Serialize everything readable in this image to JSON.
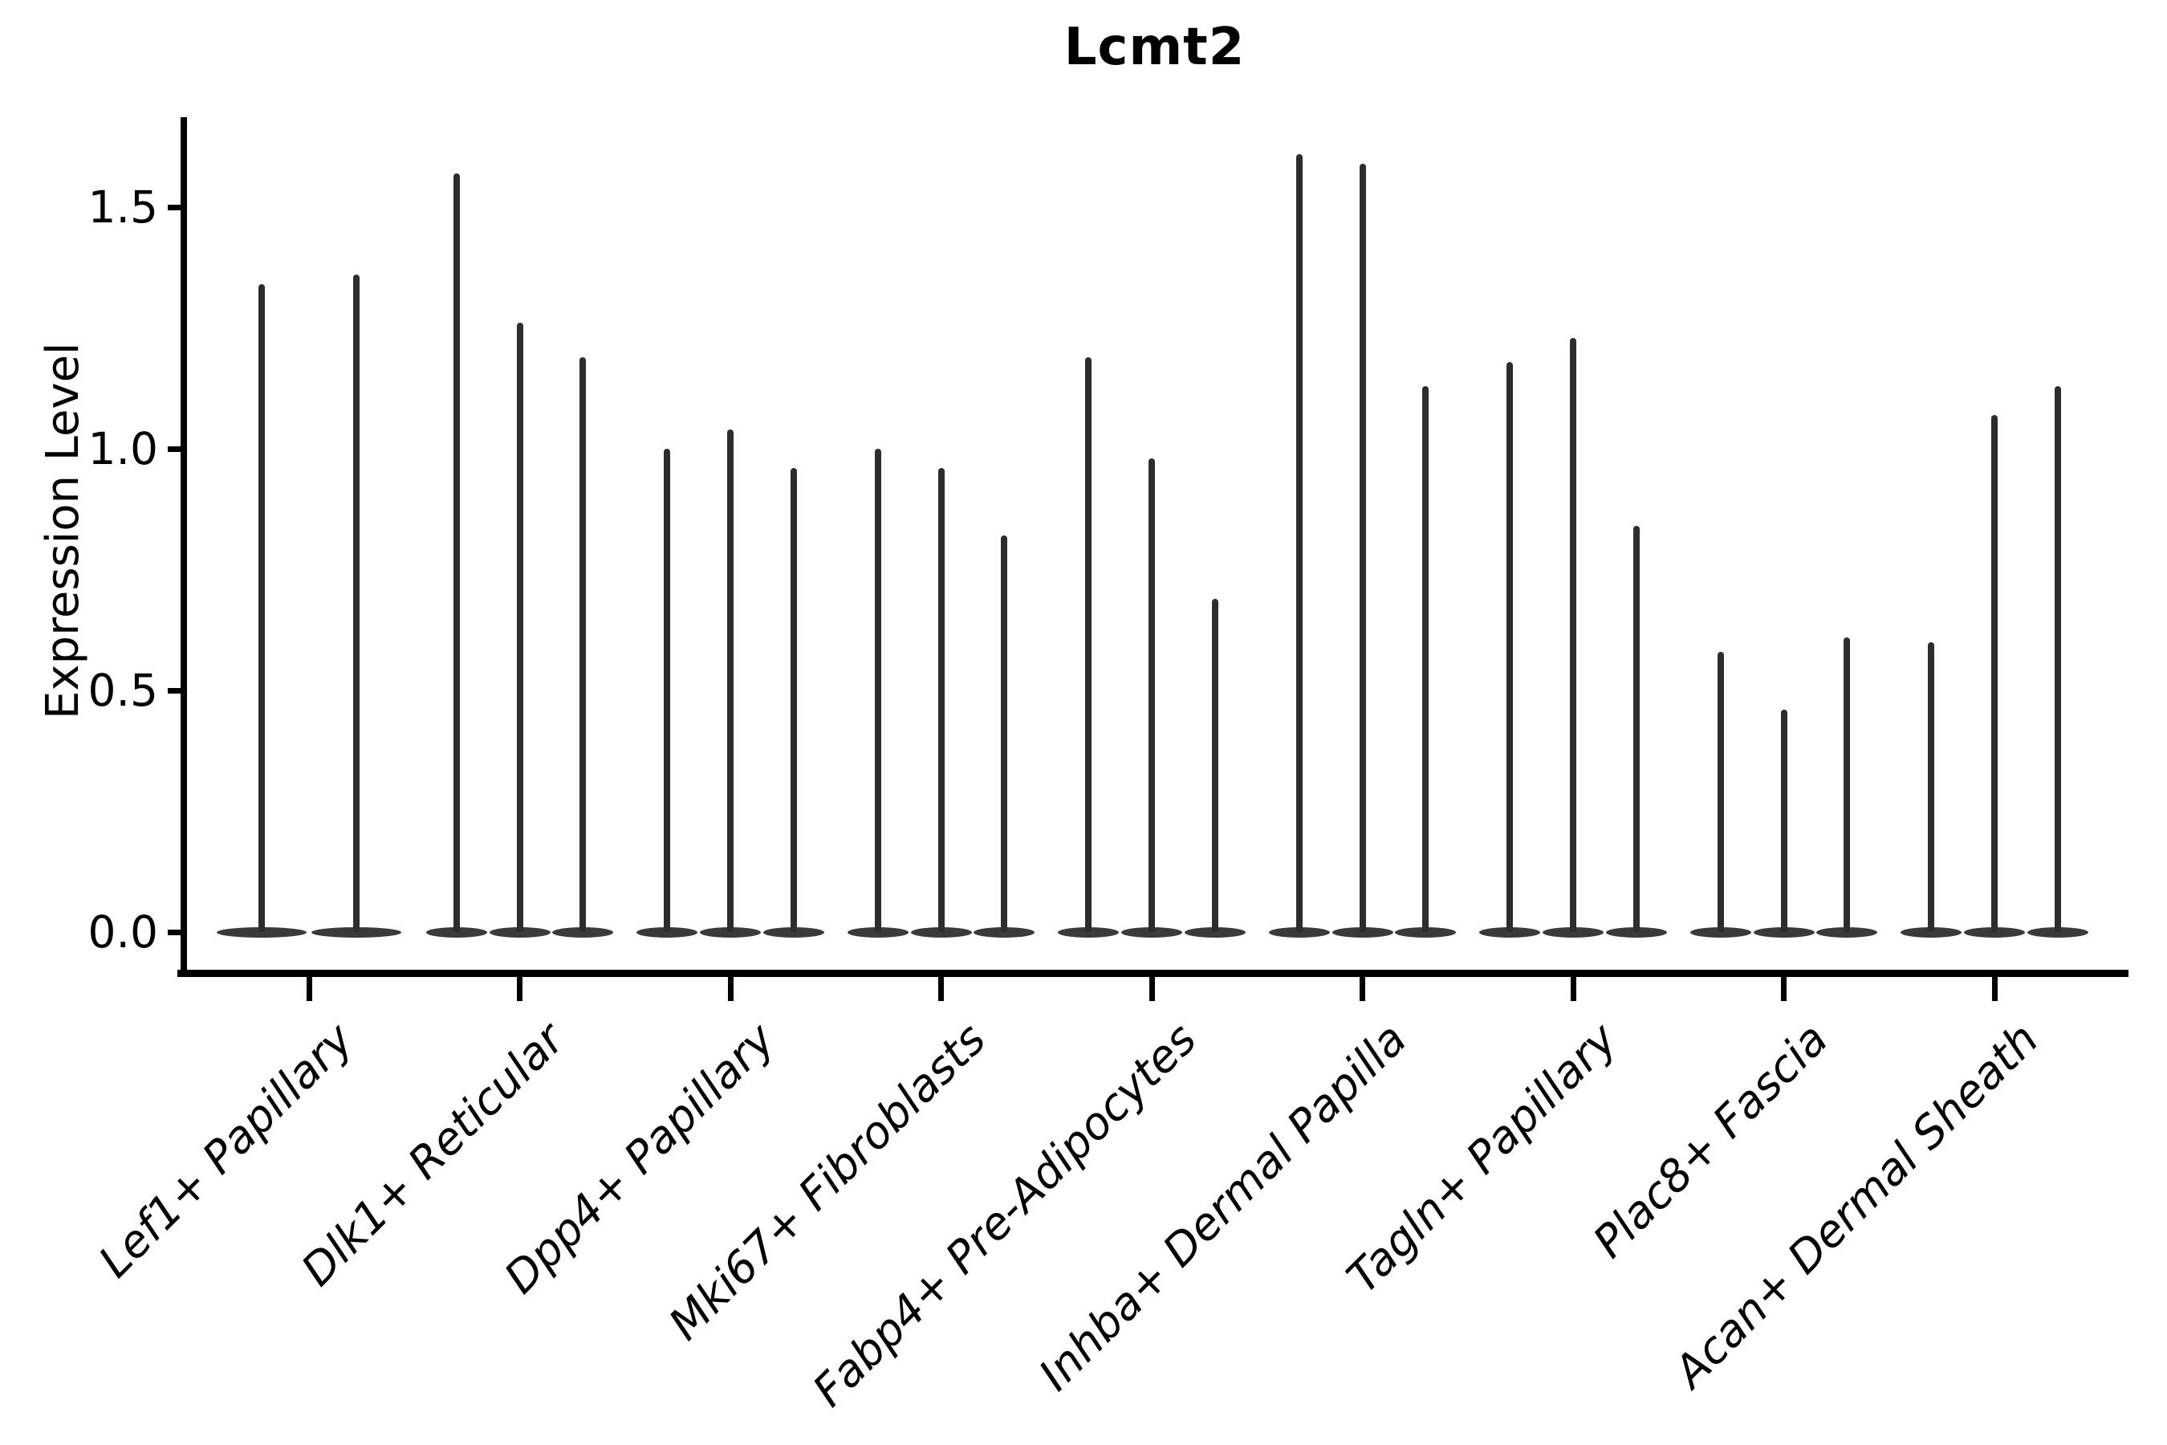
{
  "title": "Lcmt2",
  "y_axis": {
    "label": "Expression Level",
    "tick_labels": [
      "0.0",
      "0.5",
      "1.0",
      "1.5"
    ]
  },
  "chart_data": {
    "type": "violin",
    "title": "Lcmt2",
    "xlabel": "",
    "ylabel": "Expression Level",
    "ylim": [
      -0.09,
      1.69
    ],
    "yticks": [
      0.0,
      0.5,
      1.0,
      1.5
    ],
    "grid": false,
    "legend": "none",
    "baseline_value": 0.0,
    "description": "Needle-thin violins; every violin is a dense spike at 0 with a thin tail reaching its maximum expression value.",
    "categories": [
      "Lef1+ Papillary",
      "Dlk1+ Reticular",
      "Dpp4+ Papillary",
      "Mki67+ Fibroblasts",
      "Fabp4+ Pre-Adipocytes",
      "Inhba+ Dermal Papilla",
      "Tagln+ Papillary",
      "Plac8+ Fascia",
      "Acan+ Dermal Sheath"
    ],
    "groups": [
      {
        "label": "Lef1+ Papillary",
        "violin_maxima": [
          1.34,
          1.36
        ]
      },
      {
        "label": "Dlk1+ Reticular",
        "violin_maxima": [
          1.57,
          1.26,
          1.19
        ]
      },
      {
        "label": "Dpp4+ Papillary",
        "violin_maxima": [
          1.0,
          1.04,
          0.96
        ]
      },
      {
        "label": "Mki67+ Fibroblasts",
        "violin_maxima": [
          1.0,
          0.96,
          0.82
        ]
      },
      {
        "label": "Fabp4+ Pre-Adipocytes",
        "violin_maxima": [
          1.19,
          0.98,
          0.69
        ]
      },
      {
        "label": "Inhba+ Dermal Papilla",
        "violin_maxima": [
          1.61,
          1.59,
          1.13
        ]
      },
      {
        "label": "Tagln+ Papillary",
        "violin_maxima": [
          1.18,
          1.23,
          0.84
        ]
      },
      {
        "label": "Plac8+ Fascia",
        "violin_maxima": [
          0.58,
          0.46,
          0.61
        ]
      },
      {
        "label": "Acan+ Dermal Sheath",
        "violin_maxima": [
          0.6,
          1.07,
          1.13
        ]
      }
    ],
    "colors": {
      "violin": "#2d2d2d",
      "violin_base": "#3a3a3a",
      "axis": "#000000",
      "text": "#000000",
      "background": "#ffffff"
    }
  }
}
